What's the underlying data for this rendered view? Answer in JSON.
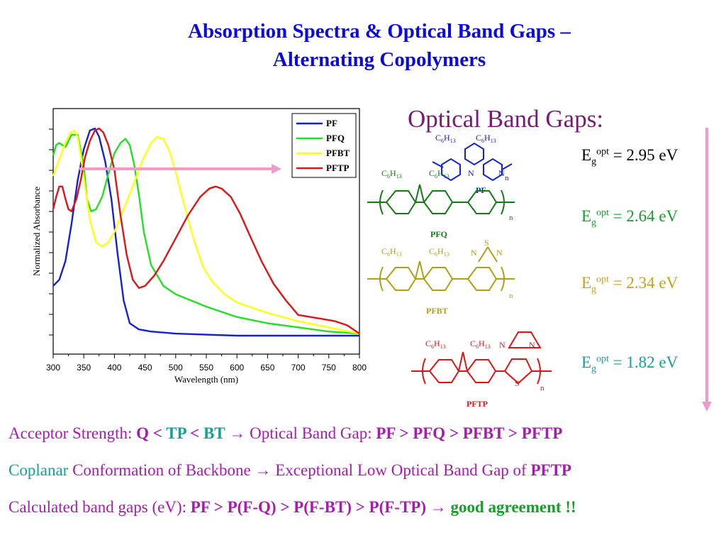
{
  "title_line1": "Absorption Spectra & Optical Band Gaps –",
  "title_line2": "Alternating Copolymers",
  "chart_data": {
    "type": "line",
    "xlabel": "Wavelength (nm)",
    "ylabel": "Normalized Absorbance",
    "xlim": [
      300,
      800
    ],
    "ylim": [
      0,
      1
    ],
    "x_ticks": [
      300,
      350,
      400,
      450,
      500,
      550,
      600,
      650,
      700,
      750,
      800
    ],
    "legend_position": "top-right",
    "series": [
      {
        "name": "PF",
        "color": "#1420d8",
        "points": [
          [
            300,
            0.24
          ],
          [
            310,
            0.27
          ],
          [
            320,
            0.36
          ],
          [
            330,
            0.54
          ],
          [
            340,
            0.75
          ],
          [
            350,
            0.9
          ],
          [
            360,
            0.99
          ],
          [
            368,
            1.0
          ],
          [
            375,
            0.96
          ],
          [
            385,
            0.84
          ],
          [
            395,
            0.66
          ],
          [
            405,
            0.4
          ],
          [
            415,
            0.17
          ],
          [
            425,
            0.06
          ],
          [
            440,
            0.03
          ],
          [
            460,
            0.02
          ],
          [
            500,
            0.01
          ],
          [
            600,
            0.0
          ],
          [
            700,
            0.0
          ],
          [
            800,
            0.0
          ]
        ]
      },
      {
        "name": "PFQ",
        "color": "#22e022",
        "points": [
          [
            300,
            0.87
          ],
          [
            305,
            0.92
          ],
          [
            310,
            0.93
          ],
          [
            320,
            0.91
          ],
          [
            330,
            0.97
          ],
          [
            340,
            0.97
          ],
          [
            350,
            0.82
          ],
          [
            355,
            0.66
          ],
          [
            362,
            0.6
          ],
          [
            370,
            0.61
          ],
          [
            380,
            0.67
          ],
          [
            390,
            0.78
          ],
          [
            400,
            0.88
          ],
          [
            410,
            0.93
          ],
          [
            418,
            0.95
          ],
          [
            425,
            0.92
          ],
          [
            432,
            0.83
          ],
          [
            440,
            0.68
          ],
          [
            448,
            0.5
          ],
          [
            460,
            0.34
          ],
          [
            480,
            0.24
          ],
          [
            500,
            0.2
          ],
          [
            550,
            0.14
          ],
          [
            600,
            0.09
          ],
          [
            650,
            0.06
          ],
          [
            700,
            0.04
          ],
          [
            750,
            0.02
          ],
          [
            800,
            0.01
          ]
        ]
      },
      {
        "name": "PFBT",
        "color": "#ffff14",
        "points": [
          [
            300,
            0.77
          ],
          [
            310,
            0.85
          ],
          [
            320,
            0.93
          ],
          [
            328,
            0.98
          ],
          [
            335,
            0.99
          ],
          [
            340,
            0.96
          ],
          [
            345,
            0.87
          ],
          [
            352,
            0.72
          ],
          [
            360,
            0.56
          ],
          [
            370,
            0.45
          ],
          [
            380,
            0.43
          ],
          [
            390,
            0.45
          ],
          [
            400,
            0.5
          ],
          [
            415,
            0.61
          ],
          [
            430,
            0.72
          ],
          [
            445,
            0.84
          ],
          [
            460,
            0.93
          ],
          [
            470,
            0.96
          ],
          [
            480,
            0.95
          ],
          [
            490,
            0.89
          ],
          [
            500,
            0.79
          ],
          [
            515,
            0.62
          ],
          [
            530,
            0.46
          ],
          [
            545,
            0.33
          ],
          [
            560,
            0.26
          ],
          [
            580,
            0.2
          ],
          [
            600,
            0.16
          ],
          [
            650,
            0.11
          ],
          [
            700,
            0.07
          ],
          [
            750,
            0.04
          ],
          [
            800,
            0.01
          ]
        ]
      },
      {
        "name": "PFTP",
        "color": "#e01414",
        "points": [
          [
            300,
            0.61
          ],
          [
            305,
            0.67
          ],
          [
            310,
            0.72
          ],
          [
            315,
            0.72
          ],
          [
            320,
            0.66
          ],
          [
            325,
            0.61
          ],
          [
            330,
            0.6
          ],
          [
            338,
            0.66
          ],
          [
            345,
            0.75
          ],
          [
            352,
            0.86
          ],
          [
            360,
            0.94
          ],
          [
            368,
            0.99
          ],
          [
            375,
            1.0
          ],
          [
            382,
            0.98
          ],
          [
            390,
            0.92
          ],
          [
            400,
            0.8
          ],
          [
            410,
            0.58
          ],
          [
            420,
            0.39
          ],
          [
            430,
            0.27
          ],
          [
            440,
            0.23
          ],
          [
            450,
            0.24
          ],
          [
            465,
            0.29
          ],
          [
            480,
            0.36
          ],
          [
            500,
            0.47
          ],
          [
            520,
            0.58
          ],
          [
            540,
            0.67
          ],
          [
            555,
            0.71
          ],
          [
            565,
            0.72
          ],
          [
            575,
            0.71
          ],
          [
            590,
            0.67
          ],
          [
            605,
            0.59
          ],
          [
            620,
            0.49
          ],
          [
            640,
            0.36
          ],
          [
            660,
            0.25
          ],
          [
            680,
            0.17
          ],
          [
            700,
            0.1
          ],
          [
            720,
            0.09
          ],
          [
            740,
            0.08
          ],
          [
            760,
            0.07
          ],
          [
            780,
            0.05
          ],
          [
            800,
            0.01
          ]
        ]
      }
    ]
  },
  "structures": {
    "pf": {
      "label": "PF",
      "sub1": "C",
      "sub2": "6",
      "sub3": "H",
      "sub4": "13",
      "n": "n"
    },
    "pfq": {
      "label": "PFQ",
      "n": "n",
      "n_atom": "N"
    },
    "pfbt": {
      "label": "PFBT",
      "n": "n",
      "n_atom": "N",
      "s_atom": "S"
    },
    "pftp": {
      "label": "PFTP",
      "n": "n",
      "n_atom": "N",
      "s_atom": "S"
    },
    "alkyl": "C6H13"
  },
  "band_gaps": {
    "heading": "Optical Band Gaps:",
    "symbol": "E",
    "sub": "g",
    "sup": "opt",
    "values": [
      {
        "text": " = 2.95 eV",
        "color": "#000000"
      },
      {
        "text": " = 2.64 eV",
        "color": "#14a028"
      },
      {
        "text": " = 2.34 eV",
        "color": "#c9a214"
      },
      {
        "text": " = 1.82 eV",
        "color": "#14a098"
      }
    ]
  },
  "bullets": {
    "b1": {
      "p1": "Acceptor Strength: ",
      "q": "Q",
      "lt1": " < ",
      "tp": "TP",
      "lt2": " < ",
      "bt": "BT",
      "arrow": " → Optical Band Gap: ",
      "order": "PF > PFQ > PFBT > PFTP"
    },
    "b2": {
      "p1": "Coplanar",
      "p2": " Conformation of Backbone → Exceptional Low Optical Band Gap of ",
      "p3": "PFTP"
    },
    "b3": {
      "p1": "Calculated band gaps (eV): ",
      "p2": "PF > P(F-Q) > P(F-BT) > P(F-TP)",
      "p3": " → ",
      "p4": "good agreement !!"
    }
  },
  "colors": {
    "title": "#0a0adf",
    "pink_arrow": "#f49ac8",
    "pf_struct": "#1420d8",
    "pfq_struct": "#147a14",
    "pfbt_struct": "#b0a014",
    "pftp_struct": "#e01414"
  }
}
